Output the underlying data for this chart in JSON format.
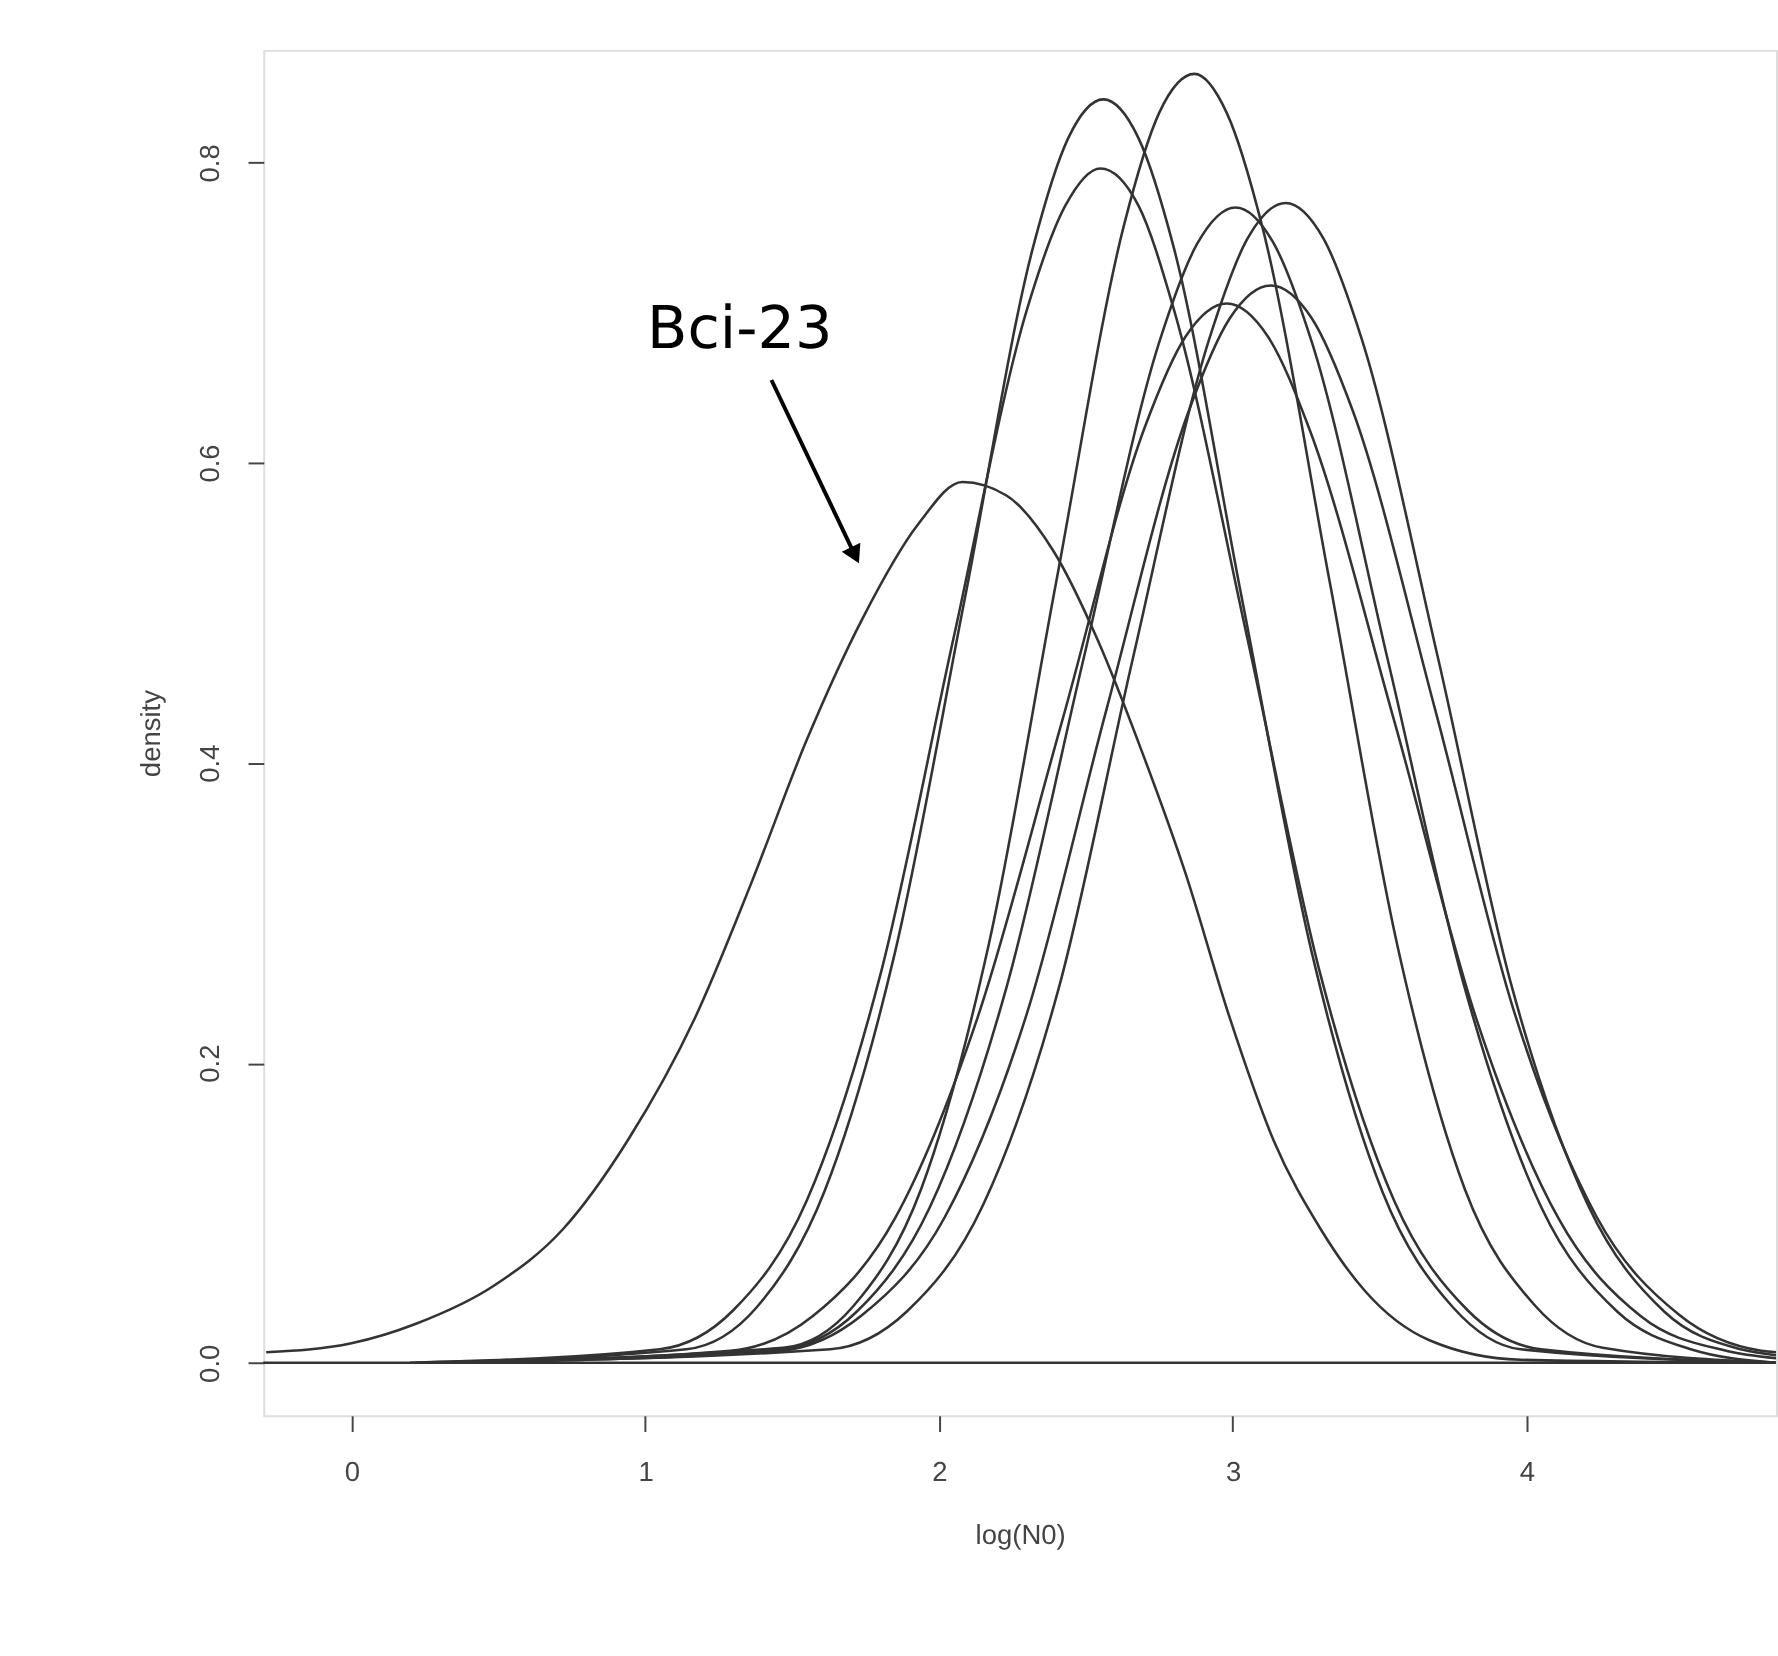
{
  "chart_data": {
    "type": "line",
    "xlabel": "log(N0)",
    "ylabel": "density",
    "xlim": [
      -0.3,
      4.85
    ],
    "ylim": [
      -0.035,
      0.875
    ],
    "xticks": [
      0,
      1,
      2,
      3,
      4
    ],
    "yticks": [
      {
        "value": 0,
        "label": "0.0"
      },
      0.2,
      0.4,
      0.6,
      0.8
    ],
    "grid": false,
    "legend": false,
    "marker": "none",
    "line_style": "solid",
    "ref_lines": [
      {
        "axis": "y",
        "value": 0,
        "color": "#333333"
      }
    ],
    "annotations": [
      {
        "text": "Bci-23",
        "x": 1.71,
        "y": 0.54
      }
    ],
    "series": [
      {
        "color": "#333333",
        "x": [
          -0.29,
          0,
          0.22,
          0.49,
          0.72,
          0.94,
          1.17,
          1.36,
          1.55,
          1.74,
          1.93,
          2.08,
          2.23,
          2.39,
          2.54,
          2.69,
          2.84,
          2.99,
          3.14,
          3.3,
          3.45,
          3.67,
          3.98,
          4.81
        ],
        "values": [
          0.007,
          0.013,
          0.026,
          0.052,
          0.089,
          0.148,
          0.23,
          0.319,
          0.415,
          0.496,
          0.559,
          0.587,
          0.578,
          0.541,
          0.482,
          0.408,
          0.326,
          0.23,
          0.148,
          0.089,
          0.048,
          0.015,
          0.002,
          0
        ]
      },
      {
        "color": "#333333",
        "x": [
          0.22,
          1.14,
          1.38,
          1.61,
          1.85,
          2.09,
          2.32,
          2.44,
          2.56,
          2.68,
          2.8,
          3.03,
          3.27,
          3.51,
          3.75,
          3.98,
          4.85
        ],
        "values": [
          0,
          0.009,
          0.037,
          0.114,
          0.273,
          0.511,
          0.743,
          0.816,
          0.842,
          0.816,
          0.743,
          0.511,
          0.273,
          0.114,
          0.037,
          0.009,
          0
        ]
      },
      {
        "color": "#333333",
        "x": [
          0.2,
          1.05,
          1.3,
          1.55,
          1.8,
          2.05,
          2.3,
          2.43,
          2.55,
          2.68,
          2.8,
          3.05,
          3.3,
          3.55,
          3.8,
          4.05,
          4.85
        ],
        "values": [
          0,
          0.009,
          0.035,
          0.108,
          0.258,
          0.483,
          0.702,
          0.771,
          0.796,
          0.771,
          0.702,
          0.483,
          0.258,
          0.108,
          0.035,
          0.009,
          0
        ]
      },
      {
        "color": "#333333",
        "x": [
          0.24,
          1.47,
          1.71,
          1.94,
          2.17,
          2.4,
          2.63,
          2.75,
          2.87,
          2.98,
          3.1,
          3.33,
          3.56,
          3.79,
          4.03,
          4.26,
          4.85
        ],
        "values": [
          0,
          0.01,
          0.038,
          0.116,
          0.279,
          0.521,
          0.758,
          0.833,
          0.859,
          0.833,
          0.758,
          0.521,
          0.279,
          0.116,
          0.038,
          0.01,
          0
        ]
      },
      {
        "color": "#333333",
        "x": [
          0.26,
          1.46,
          1.72,
          1.97,
          2.23,
          2.49,
          2.75,
          2.88,
          3.01,
          3.14,
          3.27,
          3.53,
          3.79,
          4.05,
          4.31,
          4.56,
          4.85
        ],
        "values": [
          0,
          0.009,
          0.034,
          0.104,
          0.25,
          0.467,
          0.68,
          0.746,
          0.77,
          0.746,
          0.68,
          0.467,
          0.25,
          0.104,
          0.034,
          0.009,
          0
        ]
      },
      {
        "color": "#333333",
        "x": [
          0.28,
          1.63,
          1.89,
          2.15,
          2.41,
          2.66,
          2.92,
          3.05,
          3.18,
          3.31,
          3.44,
          3.7,
          3.95,
          4.21,
          4.47,
          4.73,
          4.85
        ],
        "values": [
          0,
          0.009,
          0.034,
          0.105,
          0.251,
          0.469,
          0.682,
          0.749,
          0.773,
          0.749,
          0.682,
          0.469,
          0.251,
          0.105,
          0.034,
          0.009,
          0.005
        ]
      },
      {
        "color": "#333333",
        "x": [
          0.3,
          1.29,
          1.57,
          1.85,
          2.13,
          2.42,
          2.7,
          2.84,
          2.98,
          3.12,
          3.26,
          3.55,
          3.83,
          4.11,
          4.39,
          4.68,
          4.85
        ],
        "values": [
          0,
          0.008,
          0.031,
          0.096,
          0.229,
          0.428,
          0.623,
          0.684,
          0.706,
          0.684,
          0.623,
          0.428,
          0.229,
          0.096,
          0.031,
          0.008,
          0.003
        ]
      },
      {
        "color": "#333333",
        "x": [
          0.32,
          1.46,
          1.74,
          2.02,
          2.3,
          2.57,
          2.85,
          2.99,
          3.13,
          3.27,
          3.41,
          3.69,
          3.96,
          4.24,
          4.52,
          4.8,
          4.85
        ],
        "values": [
          0,
          0.008,
          0.032,
          0.097,
          0.233,
          0.435,
          0.634,
          0.696,
          0.718,
          0.696,
          0.634,
          0.435,
          0.233,
          0.097,
          0.032,
          0.008,
          0.007
        ]
      }
    ]
  }
}
